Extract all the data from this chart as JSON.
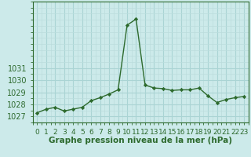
{
  "x": [
    0,
    1,
    2,
    3,
    4,
    5,
    6,
    7,
    8,
    9,
    10,
    11,
    12,
    13,
    14,
    15,
    16,
    17,
    18,
    19,
    20,
    21,
    22,
    23
  ],
  "y": [
    1027.3,
    1027.6,
    1027.75,
    1027.45,
    1027.6,
    1027.75,
    1028.3,
    1028.55,
    1028.85,
    1029.2,
    1034.55,
    1035.05,
    1029.6,
    1029.35,
    1029.3,
    1029.15,
    1029.2,
    1029.2,
    1029.35,
    1028.7,
    1028.15,
    1028.4,
    1028.55,
    1028.65
  ],
  "line_color": "#2d6a2d",
  "marker_color": "#2d6a2d",
  "bg_color": "#cceaea",
  "grid_major_color": "#aad4d4",
  "grid_minor_color": "#bbdddd",
  "axis_color": "#2d6a2d",
  "xlabel": "Graphe pression niveau de la mer (hPa)",
  "ylim_min": 1026.5,
  "ylim_max": 1036.5,
  "xlim_min": -0.5,
  "xlim_max": 23.5,
  "yticks": [
    1027,
    1028,
    1029,
    1030,
    1031
  ],
  "xtick_labels": [
    "0",
    "1",
    "2",
    "3",
    "4",
    "5",
    "6",
    "7",
    "8",
    "9",
    "10",
    "11",
    "12",
    "13",
    "14",
    "15",
    "16",
    "17",
    "18",
    "19",
    "20",
    "21",
    "22",
    "23"
  ],
  "font_size_xlabel": 7.5,
  "font_size_ytick": 7,
  "font_size_xtick": 6.5
}
